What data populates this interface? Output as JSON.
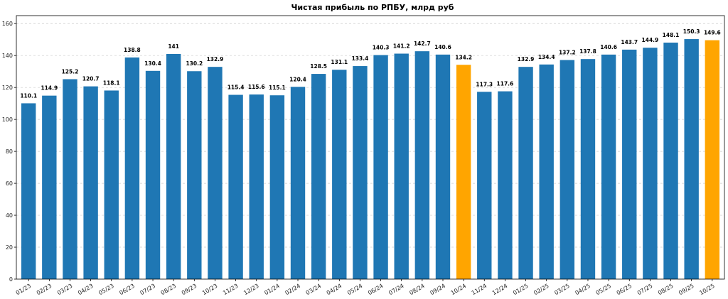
{
  "chart_data": {
    "type": "bar",
    "title": "Чистая прибыль по РПБУ, млрд руб",
    "xlabel": "",
    "ylabel": "",
    "ylim": [
      0,
      165
    ],
    "yticks": [
      0,
      20,
      40,
      60,
      80,
      100,
      120,
      140,
      160
    ],
    "grid": "y",
    "colors": {
      "default": "#1f77b4",
      "highlight": "#ffa500"
    },
    "categories": [
      "01/23",
      "02/23",
      "03/23",
      "04/23",
      "05/23",
      "06/23",
      "07/23",
      "08/23",
      "09/23",
      "10/23",
      "11/23",
      "12/23",
      "01/24",
      "02/24",
      "03/24",
      "04/24",
      "05/24",
      "06/24",
      "07/24",
      "08/24",
      "09/24",
      "10/24",
      "11/24",
      "12/24",
      "01/25",
      "02/25",
      "03/25",
      "04/25",
      "05/25",
      "06/25",
      "07/25",
      "08/25",
      "09/25",
      "10/25"
    ],
    "values": [
      110.1,
      114.9,
      125.2,
      120.7,
      118.1,
      138.8,
      130.4,
      141,
      130.2,
      132.9,
      115.4,
      115.6,
      115.1,
      120.4,
      128.5,
      131.1,
      133.4,
      140.3,
      141.2,
      142.7,
      140.6,
      134.2,
      117.3,
      117.6,
      132.9,
      134.4,
      137.2,
      137.8,
      140.6,
      143.7,
      144.9,
      148.1,
      150.3,
      149.6
    ],
    "value_labels": [
      "110.1",
      "114.9",
      "125.2",
      "120.7",
      "118.1",
      "138.8",
      "130.4",
      "141",
      "130.2",
      "132.9",
      "115.4",
      "115.6",
      "115.1",
      "120.4",
      "128.5",
      "131.1",
      "133.4",
      "140.3",
      "141.2",
      "142.7",
      "140.6",
      "134.2",
      "117.3",
      "117.6",
      "132.9",
      "134.4",
      "137.2",
      "137.8",
      "140.6",
      "143.7",
      "144.9",
      "148.1",
      "150.3",
      "149.6"
    ],
    "highlighted": [
      "10/24",
      "10/25"
    ]
  }
}
